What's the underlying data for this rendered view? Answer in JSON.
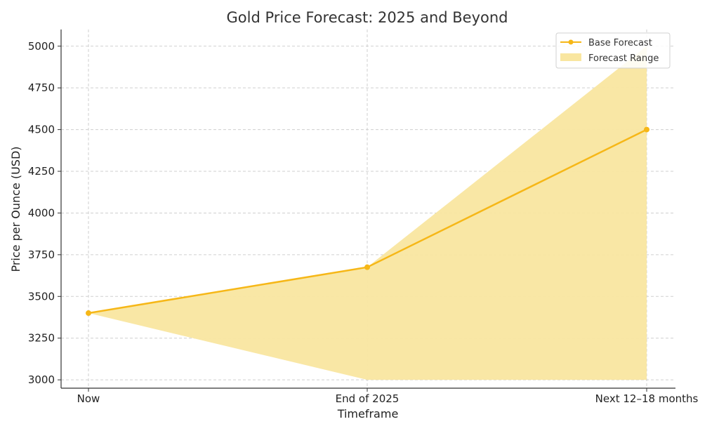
{
  "chart_data": {
    "type": "line",
    "title": "Gold Price Forecast: 2025 and Beyond",
    "xlabel": "Timeframe",
    "ylabel": "Price per Ounce (USD)",
    "categories": [
      "Now",
      "End of 2025",
      "Next 12–18 months"
    ],
    "series": [
      {
        "name": "Base Forecast",
        "values": [
          3400,
          3675,
          4500
        ]
      }
    ],
    "range": {
      "name": "Forecast Range",
      "low": [
        3400,
        3000,
        3000
      ],
      "high": [
        3400,
        3675,
        5000
      ]
    },
    "ylim": [
      2950,
      5100
    ],
    "yticks": [
      3000,
      3250,
      3500,
      3750,
      4000,
      4250,
      4500,
      4750,
      5000
    ],
    "grid": true,
    "legend_position": "top-right",
    "colors": {
      "line": "#f6b717",
      "band": "#f9e6a0"
    }
  }
}
